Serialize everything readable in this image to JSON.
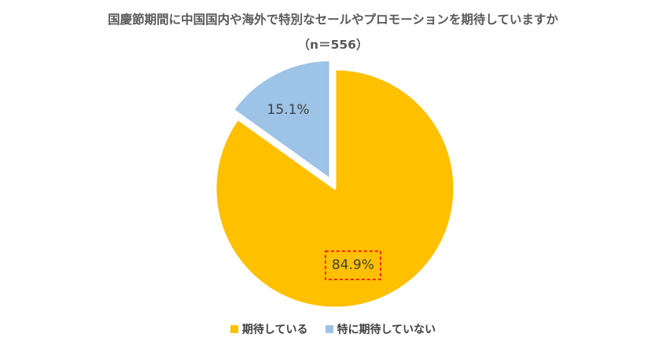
{
  "title": {
    "line1": "国慶節期間に中国国内や海外で特別なセールやプロモーションを期待していますか",
    "line2": "（n＝556）"
  },
  "chart_data": {
    "type": "pie",
    "slices": [
      {
        "name": "期待している",
        "value": 84.9,
        "label": "84.9%",
        "color": "#FFC000",
        "highlight_label": true
      },
      {
        "name": "特に期待していない",
        "value": 15.1,
        "label": "15.1%",
        "color": "#9DC3E6",
        "exploded": true
      }
    ],
    "legend_position": "bottom",
    "colors": {
      "border": "#FFFFFF",
      "highlight_box": "#FF0000"
    }
  }
}
